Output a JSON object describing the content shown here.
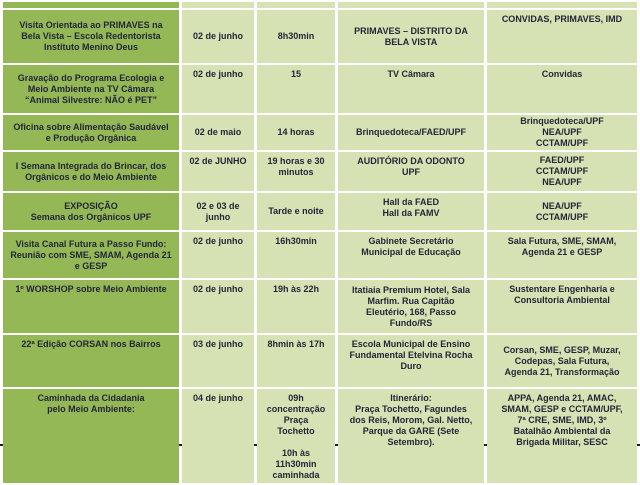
{
  "colors": {
    "event_column_bg": "#95b857",
    "cell_bg": "#d6e2b4",
    "text": "#232637",
    "grid_gap": "#ffffff",
    "bottom_border": "#1c1c1c"
  },
  "table": {
    "rows": [
      {
        "event": "Visita Orientada ao PRIMAVES  na\nBela Vista – Escola Redentorista\nInstituto Menino Deus",
        "date": "02 de junho",
        "time": "8h30min",
        "location": "PRIMAVES – DISTRITO DA\nBELA VISTA",
        "participants": "CONVIDAS, PRIMAVES, IMD"
      },
      {
        "event": "Gravação do Programa Ecologia e\nMeio Ambiente na TV Câmara\n“Animal Silvestre: NÃO é PET”",
        "date": "02 de junho",
        "time": "15",
        "location": "TV Câmara",
        "participants": "Convidas"
      },
      {
        "event": "Oficina sobre Alimentação Saudável\ne Produção Orgânica",
        "date": "02 de maio",
        "time": "14 horas",
        "location": "Brinquedoteca/FAED/UPF",
        "participants": "Brinquedoteca/UPF\nNEA/UPF\nCCTAM/UPF"
      },
      {
        "event": "I Semana Integrada do Brincar, dos\nOrgânicos e do Meio Ambiente",
        "date": "02 de JUNHO",
        "time": "19 horas e 30\nminutos",
        "location": "AUDITÓRIO DA ODONTO\nUPF",
        "participants": "FAED/UPF\nCCTAM/UPF\nNEA/UPF"
      },
      {
        "event": "EXPOSIÇÃO\nSemana dos Orgânicos UPF",
        "date": "02 e 03 de\njunho",
        "time": "Tarde e noite",
        "location": "Hall da FAED\nHall da FAMV",
        "participants": "NEA/UPF\nCCTAM/UPF"
      },
      {
        "event": "Visita Canal Futura a Passo Fundo:\nReunião com SME, SMAM, Agenda 21\ne GESP",
        "date": "02 de junho",
        "time": "16h30min",
        "location": "Gabinete Secretário\nMunicipal de Educação",
        "participants": "Sala Futura, SME, SMAM,\nAgenda 21 e GESP"
      },
      {
        "event": "1º WORSHOP sobre Meio Ambiente",
        "date": "02 de junho",
        "time": "19h às 22h",
        "location": "Itatiaia Premium Hotel, Sala\nMarfim. Rua Capitão\nEleutério, 168, Passo\nFundo/RS",
        "participants": "Sustentare Engenharia e\nConsultoria Ambiental"
      },
      {
        "event": "22ª Edição CORSAN nos Bairros",
        "date": "03 de junho",
        "time": "8hmin às 17h",
        "location": "Escola Municipal de Ensino\nFundamental Etelvina Rocha\nDuro",
        "participants": "Corsan, SME, GESP, Muzar,\nCodepas, Sala Futura,\nAgenda 21, Transformação"
      },
      {
        "event": "Caminhada da Cidadania\npelo Meio Ambiente:",
        "date": "04 de junho",
        "time": "09h\nconcentração\nPraça\nTochetto\n\n10h às\n11h30min\ncaminhada",
        "location": "Itinerário:\nPraça Tochetto, Fagundes\ndos Reis, Morom, Gal. Netto,\nParque da GARE (Sete\nSetembro).",
        "participants": "APPA, Agenda 21, AMAC,\nSMAM, GESP e CCTAM/UPF,\n7ª CRE, SME, IMD, 3º\nBatalhão Ambiental da\nBrigada Militar, SESC"
      }
    ]
  }
}
